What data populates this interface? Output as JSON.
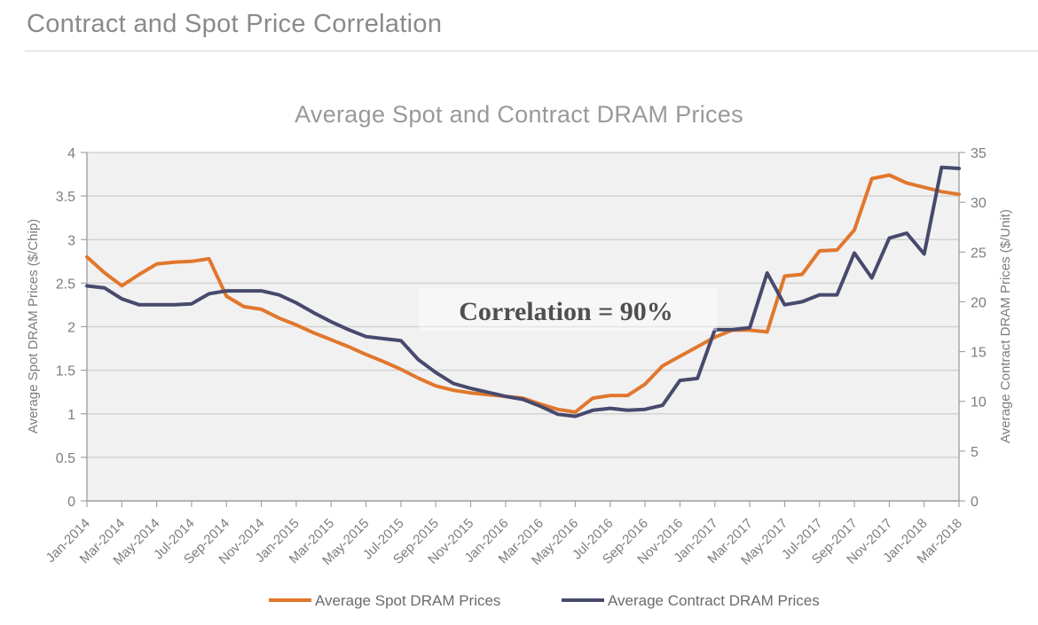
{
  "header": {
    "title": "Contract and Spot Price Correlation"
  },
  "chart_data": {
    "type": "line",
    "title": "Average Spot and Contract DRAM Prices",
    "annotation": "Correlation = 90%",
    "grid": true,
    "legend_position": "bottom",
    "x_tick_labels": [
      "Jan-2014",
      "Mar-2014",
      "May-2014",
      "Jul-2014",
      "Sep-2014",
      "Nov-2014",
      "Jan-2015",
      "Mar-2015",
      "May-2015",
      "Jul-2015",
      "Sep-2015",
      "Nov-2015",
      "Jan-2016",
      "Mar-2016",
      "May-2016",
      "Jul-2016",
      "Sep-2016",
      "Nov-2016",
      "Jan-2017",
      "Mar-2017",
      "May-2017",
      "Jul-2017",
      "Sep-2017",
      "Nov-2017",
      "Jan-2018",
      "Mar-2018"
    ],
    "x_months_total": 51,
    "y_left": {
      "label": "Average Spot DRAM Prices ($/Chip)",
      "min": 0,
      "max": 4,
      "ticks": [
        "0",
        "0.5",
        "1",
        "1.5",
        "2",
        "2.5",
        "3",
        "3.5",
        "4"
      ]
    },
    "y_right": {
      "label": "Average Contract DRAM Prices ($/Unit)",
      "min": 0,
      "max": 35,
      "ticks": [
        "0",
        "5",
        "10",
        "15",
        "20",
        "25",
        "30",
        "35"
      ]
    },
    "series": [
      {
        "name": "Average Spot DRAM Prices",
        "axis": "left",
        "color": "#e1772d",
        "values": [
          2.8,
          2.62,
          2.47,
          2.6,
          2.72,
          2.74,
          2.75,
          2.78,
          2.35,
          2.23,
          2.2,
          2.1,
          2.02,
          1.93,
          1.85,
          1.77,
          1.68,
          1.6,
          1.51,
          1.41,
          1.32,
          1.27,
          1.24,
          1.22,
          1.2,
          1.18,
          1.11,
          1.05,
          1.02,
          1.18,
          1.21,
          1.21,
          1.34,
          1.55,
          1.66,
          1.77,
          1.88,
          1.96,
          1.96,
          1.94,
          2.58,
          2.6,
          2.87,
          2.88,
          3.11,
          3.7,
          3.74,
          3.65,
          3.6,
          3.55,
          3.52
        ]
      },
      {
        "name": "Average Contract DRAM Prices",
        "axis": "right",
        "color": "#474a6d",
        "values": [
          21.6,
          21.4,
          20.3,
          19.7,
          19.7,
          19.7,
          19.8,
          20.8,
          21.1,
          21.1,
          21.1,
          20.7,
          19.9,
          18.9,
          18.0,
          17.2,
          16.5,
          16.3,
          16.1,
          14.2,
          12.9,
          11.8,
          11.3,
          10.9,
          10.5,
          10.2,
          9.5,
          8.7,
          8.5,
          9.1,
          9.3,
          9.1,
          9.2,
          9.6,
          12.1,
          12.3,
          17.2,
          17.2,
          17.4,
          22.9,
          19.7,
          20.0,
          20.7,
          20.7,
          24.9,
          22.4,
          26.4,
          26.9,
          24.8,
          33.5,
          33.4
        ]
      }
    ],
    "colors": {
      "plot_background": "#f1f1f1",
      "gridline": "#d2d2d2",
      "axis_line": "#a3a3a3",
      "tick_label": "#7d7d7d"
    }
  }
}
